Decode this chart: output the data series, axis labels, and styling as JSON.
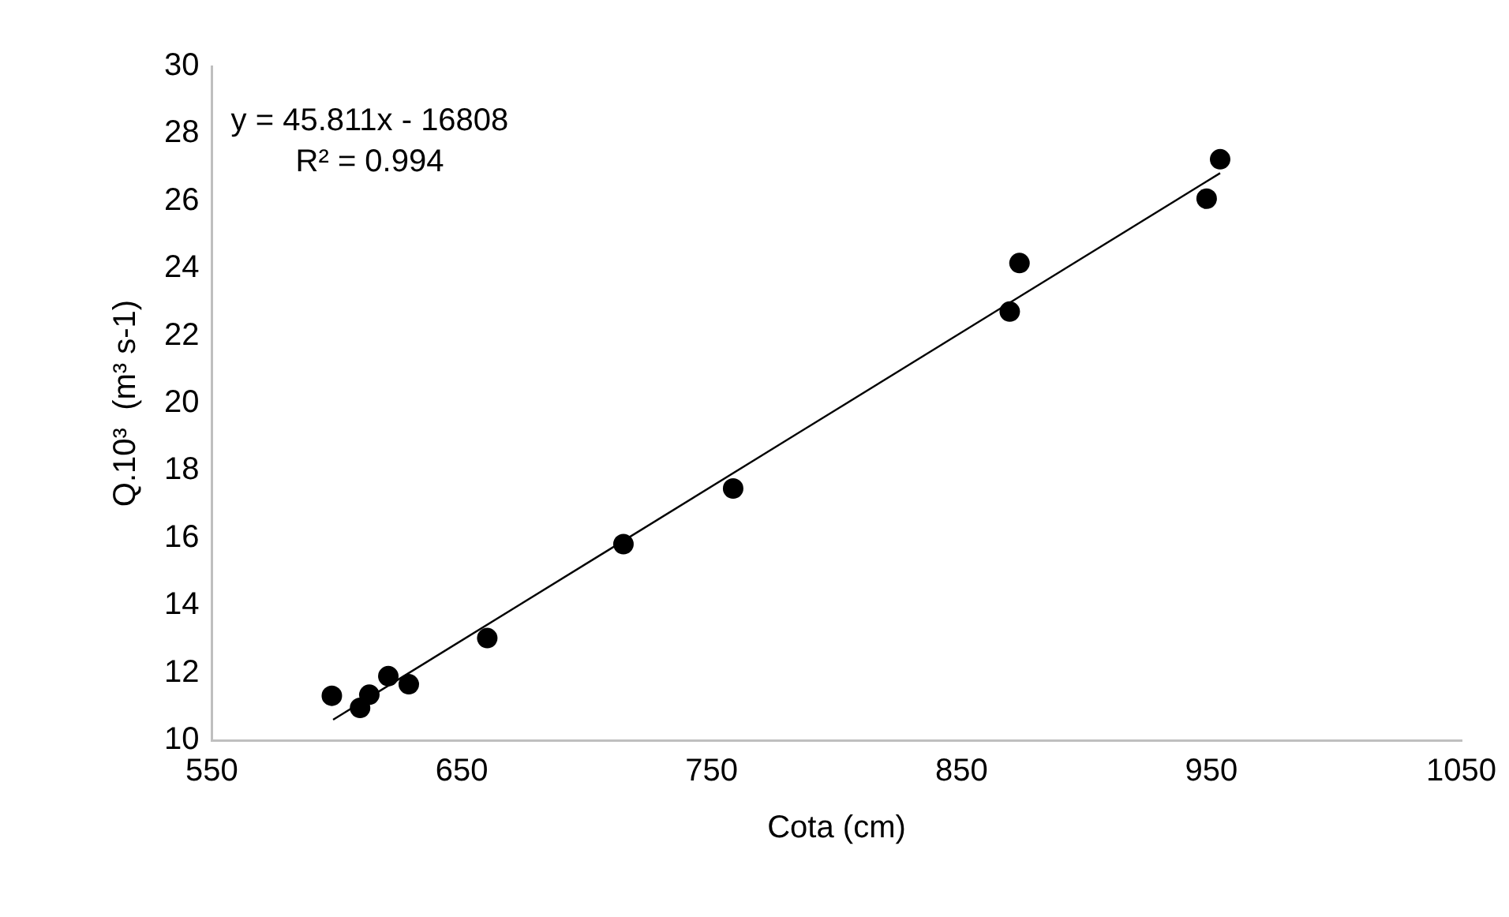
{
  "chart_data": {
    "type": "scatter",
    "xlabel": "Cota (cm)",
    "ylabel": "Q.10³  (m³ s-1)",
    "xlim": [
      550,
      1050
    ],
    "xticks": [
      550,
      650,
      750,
      850,
      950,
      1050
    ],
    "ylim": [
      10,
      30
    ],
    "yticks": [
      10,
      12,
      14,
      16,
      18,
      20,
      22,
      24,
      26,
      28,
      30
    ],
    "grid": false,
    "legend": false,
    "marker": "circle",
    "annotations": [
      "y = 45.811x - 16808",
      "R² = 0.994"
    ],
    "series": [
      {
        "type": "scatter",
        "color": "#000000",
        "x": [
          598,
          609.3,
          613,
          620.6,
          628.8,
          660.2,
          714.7,
          758.6,
          869.3,
          873.2,
          948.1,
          953.5
        ],
        "values": [
          11.32,
          10.96,
          11.35,
          11.9,
          11.66,
          13.03,
          15.82,
          17.47,
          22.72,
          24.16,
          26.07,
          27.24
        ]
      },
      {
        "type": "line",
        "color": "#000000",
        "line_style": "solid",
        "marker": "none",
        "x": [
          598.5,
          953.5
        ],
        "values": [
          10.61,
          26.83
        ]
      }
    ]
  }
}
